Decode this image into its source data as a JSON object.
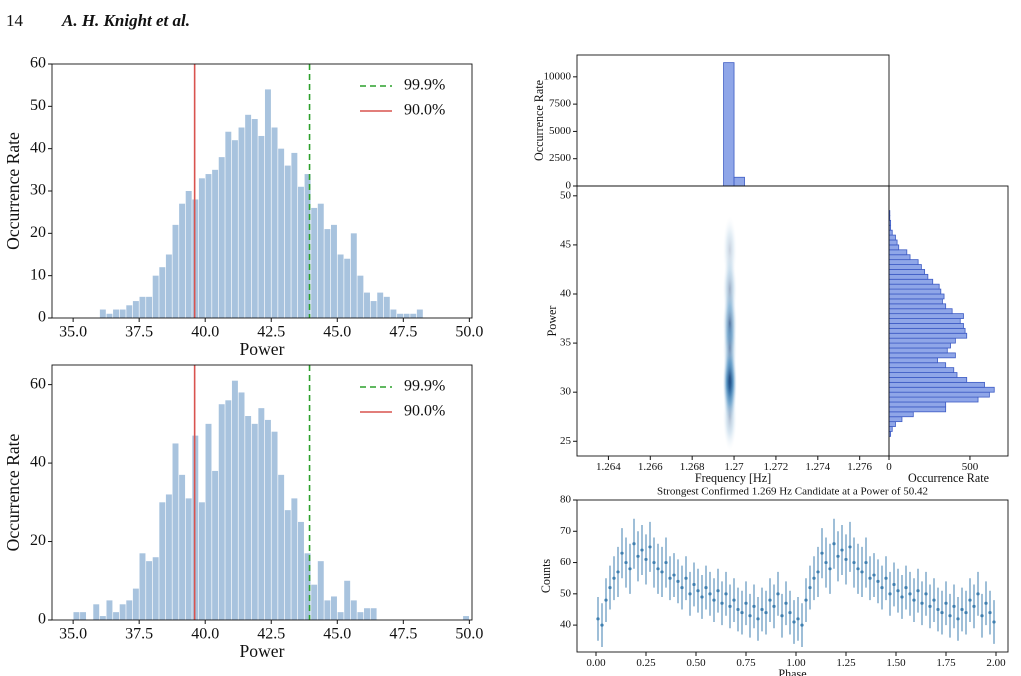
{
  "header": {
    "page_number": "14",
    "authors": "A. H. Knight et al."
  },
  "chart_data": [
    {
      "type": "histogram",
      "xlabel": "Power",
      "ylabel": "Occurrence Rate",
      "color": "#a8c3de",
      "bins": [
        36,
        36.25,
        36.5,
        36.75,
        37,
        37.25,
        37.5,
        37.75,
        38,
        38.25,
        38.5,
        38.75,
        39,
        39.25,
        39.5,
        39.75,
        40,
        40.25,
        40.5,
        40.75,
        41,
        41.25,
        41.5,
        41.75,
        42,
        42.25,
        42.5,
        42.75,
        43,
        43.25,
        43.5,
        43.75,
        44,
        44.25,
        44.5,
        44.75,
        45,
        45.25,
        45.5,
        45.75,
        46,
        46.25,
        46.5,
        46.75,
        47,
        47.25,
        47.5,
        47.75,
        48,
        48.25
      ],
      "counts": [
        2,
        1,
        2,
        2,
        3,
        4,
        5,
        5,
        10,
        12,
        15,
        22,
        27,
        30,
        28,
        33,
        34,
        35,
        38,
        44,
        42,
        45,
        48,
        47,
        43,
        54,
        45,
        40,
        36,
        39,
        31,
        34,
        26,
        27,
        21,
        22,
        15,
        14,
        20,
        10,
        6,
        4,
        6,
        5,
        2,
        1,
        1,
        1,
        2
      ],
      "lines": [
        {
          "name": "99.9%",
          "value": 43.95,
          "color": "#2ca02c",
          "dashed": true
        },
        {
          "name": "90.0%",
          "value": 39.6,
          "color": "#d9534f",
          "dashed": false
        }
      ],
      "legend": "upper right",
      "xlim": [
        34.2,
        50.1
      ],
      "ylim": [
        0,
        60
      ],
      "xticks": [
        {
          "value": 35,
          "label": "35.0"
        },
        37.5,
        {
          "value": 40,
          "label": "40.0"
        },
        42.5,
        {
          "value": 45,
          "label": "45.0"
        },
        47.5,
        {
          "value": 50,
          "label": "50.0"
        }
      ],
      "yticks": [
        0,
        10,
        20,
        30,
        40,
        50,
        60
      ]
    },
    {
      "type": "histogram",
      "xlabel": "Power",
      "ylabel": "Occurrence Rate",
      "color": "#a8c3de",
      "bins": [
        35,
        35.25,
        35.5,
        35.75,
        36,
        36.25,
        36.5,
        36.75,
        37,
        37.25,
        37.5,
        37.75,
        38,
        38.25,
        38.5,
        38.75,
        39,
        39.25,
        39.5,
        39.75,
        40,
        40.25,
        40.5,
        40.75,
        41,
        41.25,
        41.5,
        41.75,
        42,
        42.25,
        42.5,
        42.75,
        43,
        43.25,
        43.5,
        43.75,
        44,
        44.25,
        44.5,
        44.75,
        45,
        45.25,
        45.5,
        45.75,
        46,
        46.25,
        46.5,
        46.75,
        47,
        47.25,
        47.5,
        47.75,
        48,
        48.25,
        48.5,
        48.75,
        49,
        49.25,
        49.5,
        49.75,
        50
      ],
      "counts": [
        2,
        2,
        0,
        4,
        1,
        5,
        2,
        4,
        5,
        8,
        17,
        15,
        16,
        30,
        32,
        45,
        37,
        31,
        47,
        30,
        50,
        38,
        55,
        56,
        61,
        58,
        52,
        50,
        54,
        51,
        48,
        37,
        28,
        31,
        25,
        17,
        9,
        15,
        5,
        6,
        2,
        10,
        5,
        2,
        3,
        3,
        0,
        0,
        0,
        0,
        0,
        0,
        0,
        0,
        0,
        0,
        0,
        0,
        0,
        1
      ],
      "lines": [
        {
          "name": "99.9%",
          "value": 43.95,
          "color": "#2ca02c",
          "dashed": true
        },
        {
          "name": "90.0%",
          "value": 39.6,
          "color": "#d9534f",
          "dashed": false
        }
      ],
      "legend": "upper right",
      "xlim": [
        34.2,
        50.1
      ],
      "ylim": [
        0,
        65
      ],
      "xticks": [
        {
          "value": 35,
          "label": "35.0"
        },
        37.5,
        {
          "value": 40,
          "label": "40.0"
        },
        42.5,
        {
          "value": 45,
          "label": "45.0"
        },
        47.5,
        {
          "value": 50,
          "label": "50.0"
        }
      ],
      "yticks": [
        0,
        20,
        40,
        60
      ]
    },
    {
      "type": "histogram",
      "ylabel": "Occurrence Rate",
      "color": "#8fa6e8",
      "edgecolor": "#3d5bc4",
      "bins": [
        1.2695,
        1.27,
        1.2705
      ],
      "counts": [
        11300,
        800
      ],
      "xlim": [
        1.2625,
        1.2774
      ],
      "ylim": [
        0,
        12000
      ],
      "yticks": [
        0,
        2500,
        5000,
        7500,
        10000
      ]
    },
    {
      "type": "kde",
      "xlabel": "Frequency [Hz]",
      "ylabel": "Power",
      "color": "#1f5f9e",
      "x": [
        1.2698,
        1.2698,
        1.2698,
        1.2698,
        1.2698,
        1.2698,
        1.2698
      ],
      "y": [
        30.5,
        31.5,
        37,
        34.5,
        40.5,
        44.5,
        27.5
      ],
      "weight": [
        1,
        0.9,
        0.8,
        0.55,
        0.45,
        0.25,
        0.35
      ],
      "xlim": [
        1.2625,
        1.2774
      ],
      "ylim": [
        23.5,
        51
      ],
      "xticks": [
        1.264,
        1.266,
        1.268,
        1.27,
        1.272,
        1.274,
        1.276
      ],
      "yticks": [
        25,
        30,
        35,
        40,
        45,
        50
      ]
    },
    {
      "type": "histogram",
      "orientation": "horizontal",
      "xlabel": "Occurrence Rate",
      "color": "#8fa6e8",
      "edgecolor": "#3d5bc4",
      "bins": [
        25.5,
        26,
        26.5,
        27,
        27.5,
        28,
        28.5,
        29,
        29.5,
        30,
        30.5,
        31,
        31.5,
        32,
        32.5,
        33,
        33.5,
        34,
        34.5,
        35,
        35.5,
        36,
        36.5,
        37,
        37.5,
        38,
        38.5,
        39,
        39.5,
        40,
        40.5,
        41,
        41.5,
        42,
        42.5,
        43,
        43.5,
        44,
        44.5,
        45,
        45.5,
        46,
        46.5,
        47,
        47.5,
        48,
        48.5
      ],
      "counts": [
        10,
        20,
        40,
        80,
        150,
        350,
        350,
        550,
        620,
        650,
        590,
        480,
        420,
        400,
        350,
        300,
        410,
        360,
        380,
        410,
        480,
        470,
        460,
        440,
        460,
        390,
        350,
        330,
        340,
        320,
        310,
        270,
        240,
        220,
        200,
        180,
        130,
        110,
        60,
        50,
        40,
        20,
        10,
        10,
        5,
        5
      ],
      "xlim": [
        0,
        735
      ],
      "ylim": [
        23.5,
        51
      ],
      "xticks": [
        0,
        500
      ]
    },
    {
      "type": "errorbar",
      "title": "Strongest Confirmed 1.269 Hz Candidate at a Power of 50.42",
      "xlabel": "Phase",
      "ylabel": "Counts",
      "color": "#3f7fb0",
      "x": [
        0.01,
        0.03,
        0.05,
        0.07,
        0.09,
        0.11,
        0.13,
        0.15,
        0.17,
        0.19,
        0.21,
        0.23,
        0.25,
        0.27,
        0.29,
        0.31,
        0.33,
        0.35,
        0.37,
        0.39,
        0.41,
        0.43,
        0.45,
        0.47,
        0.49,
        0.51,
        0.53,
        0.55,
        0.57,
        0.59,
        0.61,
        0.63,
        0.65,
        0.67,
        0.69,
        0.71,
        0.73,
        0.75,
        0.77,
        0.79,
        0.81,
        0.83,
        0.85,
        0.87,
        0.89,
        0.91,
        0.93,
        0.95,
        0.97,
        0.99,
        1.01,
        1.03,
        1.05,
        1.07,
        1.09,
        1.11,
        1.13,
        1.15,
        1.17,
        1.19,
        1.21,
        1.23,
        1.25,
        1.27,
        1.29,
        1.31,
        1.33,
        1.35,
        1.37,
        1.39,
        1.41,
        1.43,
        1.45,
        1.47,
        1.49,
        1.51,
        1.53,
        1.55,
        1.57,
        1.59,
        1.61,
        1.63,
        1.65,
        1.67,
        1.69,
        1.71,
        1.73,
        1.75,
        1.77,
        1.79,
        1.81,
        1.83,
        1.85,
        1.87,
        1.89,
        1.91,
        1.93,
        1.95,
        1.97,
        1.99
      ],
      "values": [
        42,
        40,
        48,
        52,
        55,
        57,
        63,
        60,
        58,
        66,
        62,
        64,
        61,
        65,
        60,
        58,
        57,
        60,
        55,
        56,
        54,
        52,
        55,
        50,
        53,
        51,
        49,
        52,
        50,
        48,
        51,
        47,
        50,
        46,
        48,
        45,
        44,
        47,
        43,
        46,
        42,
        45,
        44,
        48,
        46,
        50,
        43,
        47,
        44,
        41,
        42,
        40,
        48,
        52,
        55,
        57,
        63,
        60,
        58,
        66,
        62,
        64,
        61,
        65,
        60,
        58,
        57,
        60,
        55,
        56,
        54,
        52,
        55,
        50,
        53,
        51,
        49,
        52,
        50,
        48,
        51,
        47,
        50,
        46,
        48,
        45,
        44,
        47,
        43,
        46,
        42,
        45,
        44,
        48,
        46,
        50,
        43,
        47,
        44,
        41
      ],
      "errors": [
        7,
        7,
        7,
        7,
        7,
        8,
        8,
        8,
        8,
        8,
        8,
        8,
        8,
        8,
        8,
        8,
        8,
        8,
        7,
        7,
        7,
        7,
        7,
        7,
        7,
        7,
        7,
        7,
        7,
        7,
        7,
        7,
        7,
        7,
        7,
        7,
        7,
        7,
        7,
        7,
        7,
        7,
        7,
        7,
        7,
        7,
        7,
        7,
        7,
        7,
        7,
        7,
        7,
        7,
        7,
        8,
        8,
        8,
        8,
        8,
        8,
        8,
        8,
        8,
        8,
        8,
        8,
        8,
        7,
        7,
        7,
        7,
        7,
        7,
        7,
        7,
        7,
        7,
        7,
        7,
        7,
        7,
        7,
        7,
        7,
        7,
        7,
        7,
        7,
        7,
        7,
        7,
        7,
        7,
        7,
        7,
        7,
        7,
        7,
        7
      ],
      "xlim": [
        -0.095,
        2.06
      ],
      "ylim": [
        31.4,
        80
      ],
      "xticks": [
        {
          "value": 0,
          "label": "0.00"
        },
        0.25,
        {
          "value": 0.5,
          "label": "0.50"
        },
        0.75,
        {
          "value": 1,
          "label": "1.00"
        },
        1.25,
        {
          "value": 1.5,
          "label": "1.50"
        },
        1.75,
        {
          "value": 2,
          "label": "2.00"
        }
      ],
      "yticks": [
        40,
        50,
        60,
        70,
        80
      ]
    }
  ]
}
